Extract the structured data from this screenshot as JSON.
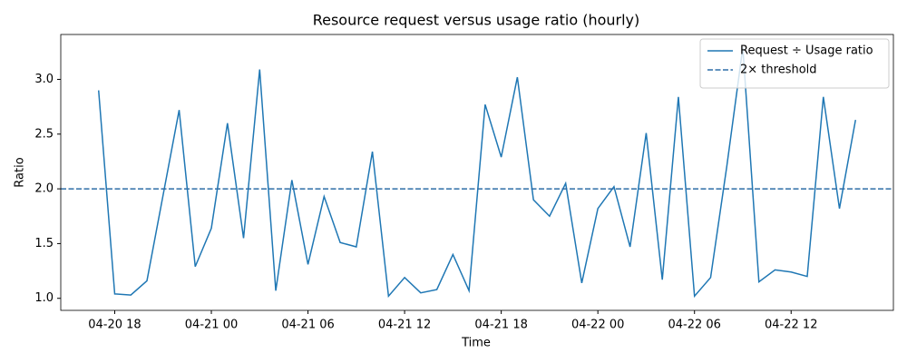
{
  "chart_data": {
    "type": "line",
    "title": "Resource request versus usage ratio (hourly)",
    "x_label": "Time",
    "y_label": "Ratio",
    "x": [
      "04-20 17",
      "04-20 18",
      "04-20 19",
      "04-20 20",
      "04-20 21",
      "04-20 22",
      "04-20 23",
      "04-21 00",
      "04-21 01",
      "04-21 02",
      "04-21 03",
      "04-21 04",
      "04-21 05",
      "04-21 06",
      "04-21 07",
      "04-21 08",
      "04-21 09",
      "04-21 10",
      "04-21 11",
      "04-21 12",
      "04-21 13",
      "04-21 14",
      "04-21 15",
      "04-21 16",
      "04-21 17",
      "04-21 18",
      "04-21 19",
      "04-21 20",
      "04-21 21",
      "04-21 22",
      "04-21 23",
      "04-22 00",
      "04-22 01",
      "04-22 02",
      "04-22 03",
      "04-22 04",
      "04-22 05",
      "04-22 06",
      "04-22 07",
      "04-22 08",
      "04-22 09",
      "04-22 10",
      "04-22 11",
      "04-22 12",
      "04-22 13",
      "04-22 14",
      "04-22 15",
      "04-22 16"
    ],
    "series": [
      {
        "name": "Request ÷ Usage ratio",
        "color": "#1f77b4",
        "values": [
          2.9,
          1.04,
          1.03,
          1.16,
          1.94,
          2.72,
          1.29,
          1.64,
          2.6,
          1.55,
          3.09,
          1.07,
          2.08,
          1.31,
          1.93,
          1.51,
          1.47,
          2.34,
          1.02,
          1.19,
          1.05,
          1.08,
          1.4,
          1.07,
          2.77,
          2.29,
          3.02,
          1.9,
          1.75,
          2.05,
          1.14,
          1.82,
          2.02,
          1.47,
          2.51,
          1.17,
          2.84,
          1.02,
          1.19,
          2.2,
          3.29,
          1.15,
          1.26,
          1.24,
          1.2,
          2.84,
          1.82,
          2.63
        ]
      }
    ],
    "threshold": {
      "name": "2× threshold",
      "value": 2,
      "color": "#2f6ea8",
      "style": "dashed"
    },
    "xlim": [
      "04-20 14:39",
      "04-22 18:21"
    ],
    "xticks": [
      "04-20 18",
      "04-21 00",
      "04-21 06",
      "04-21 12",
      "04-21 18",
      "04-22 00",
      "04-22 06",
      "04-22 12"
    ],
    "ylim": [
      0.89,
      3.41
    ],
    "yticks": [
      {
        "value": 1,
        "label": "1.0"
      },
      1.5,
      {
        "value": 2,
        "label": "2.0"
      },
      2.5,
      {
        "value": 3,
        "label": "3.0"
      }
    ],
    "grid": false,
    "legend": "upper right"
  }
}
